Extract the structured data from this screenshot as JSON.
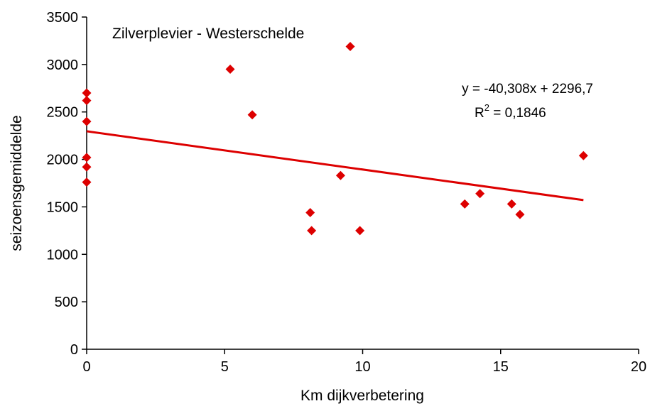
{
  "chart_data": {
    "type": "scatter",
    "title": "Zilverplevier - Westerschelde",
    "xlabel": "Km dijkverbetering",
    "ylabel": "seizoensgemiddelde",
    "xlim": [
      0,
      20
    ],
    "ylim": [
      0,
      3500
    ],
    "xticks": [
      0,
      5,
      10,
      15,
      20
    ],
    "yticks": [
      0,
      500,
      1000,
      1500,
      2000,
      2500,
      3000,
      3500
    ],
    "grid": false,
    "marker_color": "#dd0000",
    "trendline_color": "#dd0000",
    "points": [
      {
        "x": 0,
        "y": 2700
      },
      {
        "x": 0,
        "y": 2620
      },
      {
        "x": 0,
        "y": 2400
      },
      {
        "x": 0,
        "y": 2020
      },
      {
        "x": 0,
        "y": 1920
      },
      {
        "x": 0,
        "y": 1760
      },
      {
        "x": 5.2,
        "y": 2950
      },
      {
        "x": 6.0,
        "y": 2470
      },
      {
        "x": 8.1,
        "y": 1440
      },
      {
        "x": 8.15,
        "y": 1250
      },
      {
        "x": 9.2,
        "y": 1830
      },
      {
        "x": 9.55,
        "y": 3190
      },
      {
        "x": 9.9,
        "y": 1250
      },
      {
        "x": 13.7,
        "y": 1530
      },
      {
        "x": 14.25,
        "y": 1640
      },
      {
        "x": 15.4,
        "y": 1530
      },
      {
        "x": 15.7,
        "y": 1420
      },
      {
        "x": 18.0,
        "y": 2040
      }
    ],
    "trendline": {
      "slope": -40.308,
      "intercept": 2296.7,
      "x_start": 0,
      "x_end": 18
    },
    "equation": "y = -40,308x + 2296,7",
    "r2_label": "R",
    "r2_sup": "2",
    "r2_value": " = 0,1846"
  }
}
